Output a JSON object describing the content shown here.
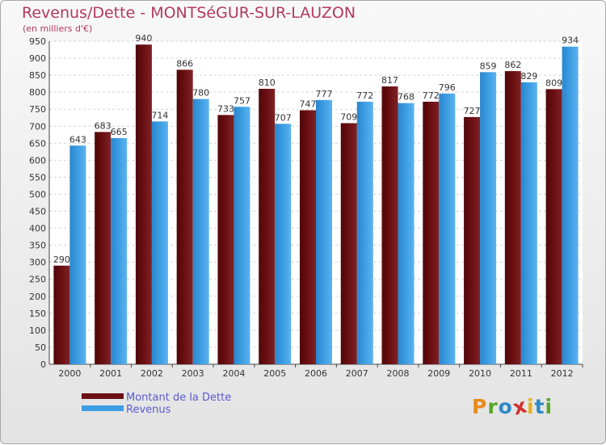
{
  "header": {
    "title": "Revenus/Dette - MONTSéGUR-SUR-LAUZON",
    "subtitle": "(en milliers d'€)"
  },
  "legend": {
    "items": [
      {
        "label": "Montant de la Dette",
        "color": "#6b0f12"
      },
      {
        "label": "Revenus",
        "color": "#3d9ee4"
      }
    ]
  },
  "logo": {
    "letters": [
      {
        "char": "P",
        "color": "#e88a1a"
      },
      {
        "char": "r",
        "color": "#5aa52a"
      },
      {
        "char": "o",
        "color": "#2f89c8"
      },
      {
        "char": "x",
        "color": "#d03030"
      },
      {
        "char": "i",
        "color": "#e8b01a"
      },
      {
        "char": "t",
        "color": "#2f89c8"
      },
      {
        "char": "i",
        "color": "#5aa52a"
      }
    ]
  },
  "chart_data": {
    "type": "bar",
    "title": "Revenus/Dette - MONTSéGUR-SUR-LAUZON",
    "subtitle": "(en milliers d'€)",
    "categories": [
      "2000",
      "2001",
      "2002",
      "2003",
      "2004",
      "2005",
      "2006",
      "2007",
      "2008",
      "2009",
      "2010",
      "2011",
      "2012"
    ],
    "series": [
      {
        "name": "Montant de la Dette",
        "color": "#6b0f12",
        "values": [
          290,
          683,
          940,
          866,
          733,
          810,
          747,
          709,
          817,
          772,
          727,
          862,
          809
        ]
      },
      {
        "name": "Revenus",
        "color": "#3d9ee4",
        "values": [
          643,
          665,
          714,
          780,
          757,
          707,
          777,
          772,
          768,
          796,
          859,
          829,
          934
        ]
      }
    ],
    "ylim": [
      0,
      950
    ],
    "yticks": [
      0,
      50,
      100,
      150,
      200,
      250,
      300,
      350,
      400,
      450,
      500,
      550,
      600,
      650,
      700,
      750,
      800,
      850,
      900,
      950
    ],
    "grid": true,
    "legend_position": "bottom-left",
    "data_labels": true
  }
}
